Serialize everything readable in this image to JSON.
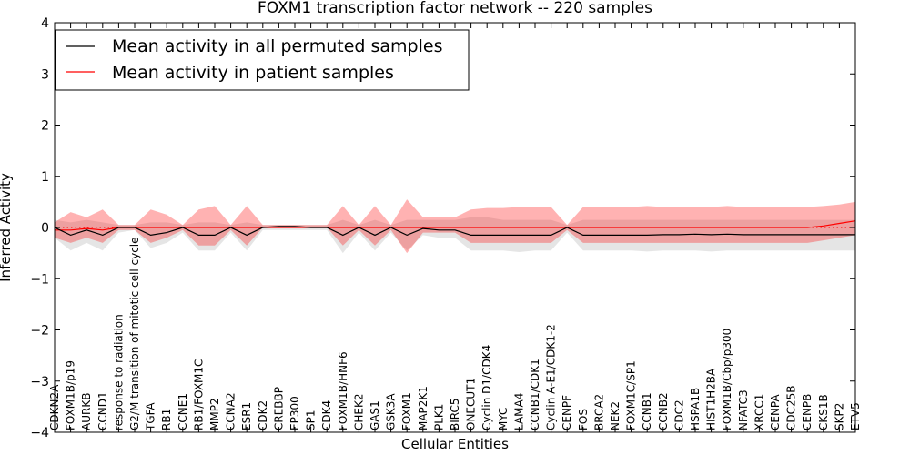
{
  "chart_data": {
    "type": "line",
    "title": "FOXM1 transcription factor network -- 220 samples",
    "xlabel": "Cellular Entities",
    "ylabel": "Inferred Activity",
    "ylim": [
      -4,
      4
    ],
    "yticks": [
      -4,
      -3,
      -2,
      -1,
      0,
      1,
      2,
      3,
      4
    ],
    "legend_position": "top-left",
    "categories": [
      "CDKN2A",
      "FOXM1B/p19",
      "AURKB",
      "CCND1",
      "response to radiation",
      "G2/M transition of mitotic cell cycle",
      "TGFA",
      "RB1",
      "CCNE1",
      "RB1/FOXM1C",
      "MMP2",
      "CCNA2",
      "ESR1",
      "CDK2",
      "CREBBP",
      "EP300",
      "SP1",
      "CDK4",
      "FOXM1B/HNF6",
      "CHEK2",
      "GAS1",
      "GSK3A",
      "FOXM1",
      "MAP2K1",
      "PLK1",
      "BIRC5",
      "ONECUT1",
      "Cyclin D1/CDK4",
      "MYC",
      "LAMA4",
      "CCNB1/CDK1",
      "Cyclin A-E1/CDK1-2",
      "CENPF",
      "FOS",
      "BRCA2",
      "NEK2",
      "FOXM1C/SP1",
      "CCNB1",
      "CCNB2",
      "CDC2",
      "HSPA1B",
      "HIST1H2BA",
      "FOXM1B/Cbp/p300",
      "NFATC3",
      "XRCC1",
      "CENPA",
      "CDC25B",
      "CENPB",
      "CKS1B",
      "SKP2",
      "ETV5"
    ],
    "series": [
      {
        "name": "Mean activity in all permuted samples",
        "color": "#000000",
        "values": [
          0.0,
          -0.15,
          -0.05,
          -0.15,
          0.0,
          0.0,
          -0.15,
          -0.1,
          0.0,
          -0.15,
          -0.15,
          0.0,
          -0.15,
          0.0,
          0.02,
          0.02,
          0.0,
          0.0,
          -0.15,
          0.0,
          -0.15,
          0.0,
          -0.15,
          -0.02,
          -0.05,
          -0.05,
          -0.15,
          -0.15,
          -0.15,
          -0.15,
          -0.15,
          -0.15,
          0.0,
          -0.15,
          -0.15,
          -0.15,
          -0.15,
          -0.15,
          -0.14,
          -0.14,
          -0.13,
          -0.14,
          -0.13,
          -0.14,
          -0.14,
          -0.14,
          -0.14,
          -0.14,
          -0.14,
          -0.14,
          -0.14
        ],
        "band_lower": [
          -0.2,
          -0.45,
          -0.3,
          -0.45,
          -0.1,
          -0.05,
          -0.4,
          -0.3,
          -0.1,
          -0.45,
          -0.45,
          -0.1,
          -0.45,
          -0.05,
          -0.05,
          -0.05,
          -0.05,
          -0.05,
          -0.5,
          -0.1,
          -0.45,
          -0.1,
          -0.45,
          -0.15,
          -0.2,
          -0.2,
          -0.45,
          -0.45,
          -0.45,
          -0.48,
          -0.45,
          -0.45,
          -0.1,
          -0.45,
          -0.45,
          -0.45,
          -0.45,
          -0.47,
          -0.45,
          -0.45,
          -0.45,
          -0.47,
          -0.45,
          -0.45,
          -0.45,
          -0.45,
          -0.45,
          -0.45,
          -0.45,
          -0.45,
          -0.45
        ],
        "band_upper": [
          0.15,
          0.1,
          0.15,
          0.1,
          0.05,
          0.05,
          0.1,
          0.1,
          0.05,
          0.1,
          0.1,
          0.05,
          0.1,
          0.05,
          0.05,
          0.05,
          0.05,
          0.05,
          0.15,
          0.05,
          0.15,
          0.05,
          0.15,
          0.15,
          0.15,
          0.15,
          0.2,
          0.2,
          0.15,
          0.15,
          0.15,
          0.15,
          0.05,
          0.15,
          0.15,
          0.15,
          0.15,
          0.15,
          0.15,
          0.15,
          0.15,
          0.15,
          0.15,
          0.15,
          0.15,
          0.15,
          0.15,
          0.15,
          0.15,
          0.15,
          0.15
        ]
      },
      {
        "name": "Mean activity in patient samples",
        "color": "#ff0000",
        "values": [
          -0.05,
          -0.05,
          -0.02,
          -0.05,
          0.0,
          0.0,
          0.0,
          0.0,
          0.0,
          0.0,
          0.0,
          0.0,
          0.0,
          0.0,
          0.0,
          0.0,
          0.0,
          0.0,
          0.0,
          0.0,
          0.0,
          0.0,
          0.0,
          0.0,
          0.0,
          0.0,
          0.0,
          0.0,
          0.0,
          0.0,
          0.0,
          0.0,
          0.0,
          0.0,
          0.0,
          0.0,
          0.0,
          0.0,
          0.0,
          0.0,
          0.0,
          0.0,
          0.0,
          0.0,
          0.0,
          0.0,
          0.0,
          0.0,
          0.03,
          0.08,
          0.13
        ],
        "band_lower": [
          -0.2,
          -0.3,
          -0.2,
          -0.3,
          -0.05,
          -0.05,
          -0.3,
          -0.2,
          -0.05,
          -0.35,
          -0.35,
          -0.05,
          -0.35,
          0.0,
          0.0,
          0.0,
          0.0,
          0.0,
          -0.35,
          -0.05,
          -0.35,
          -0.05,
          -0.5,
          -0.1,
          -0.1,
          -0.1,
          -0.3,
          -0.3,
          -0.3,
          -0.3,
          -0.3,
          -0.3,
          -0.05,
          -0.3,
          -0.3,
          -0.3,
          -0.3,
          -0.3,
          -0.3,
          -0.3,
          -0.3,
          -0.3,
          -0.3,
          -0.3,
          -0.3,
          -0.3,
          -0.3,
          -0.3,
          -0.25,
          -0.2,
          -0.15
        ],
        "band_upper": [
          0.1,
          0.3,
          0.2,
          0.35,
          0.05,
          0.05,
          0.35,
          0.25,
          0.05,
          0.35,
          0.42,
          0.05,
          0.42,
          0.05,
          0.05,
          0.05,
          0.05,
          0.05,
          0.42,
          0.05,
          0.42,
          0.05,
          0.55,
          0.2,
          0.2,
          0.2,
          0.35,
          0.38,
          0.38,
          0.4,
          0.4,
          0.4,
          0.05,
          0.4,
          0.4,
          0.4,
          0.4,
          0.42,
          0.4,
          0.4,
          0.4,
          0.4,
          0.42,
          0.4,
          0.4,
          0.4,
          0.4,
          0.4,
          0.42,
          0.45,
          0.5
        ]
      }
    ],
    "reference_line": {
      "y": 0,
      "style": "dotted",
      "color": "#ff0000"
    }
  }
}
